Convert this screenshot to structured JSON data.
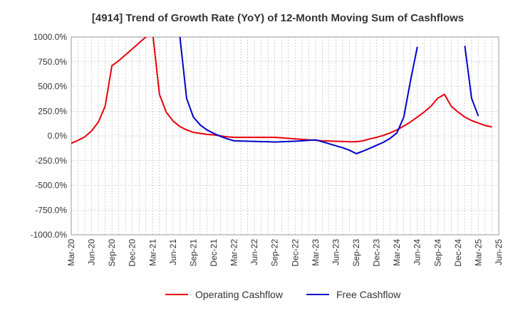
{
  "chart_data": {
    "type": "line",
    "title": "[4914]  Trend of Growth Rate (YoY) of 12-Month Moving Sum of Cashflows",
    "xlabel": "",
    "ylabel": "",
    "ylim": [
      -1000,
      1000
    ],
    "y_ticks": [
      1000,
      750,
      500,
      250,
      0,
      -250,
      -500,
      -750,
      -1000
    ],
    "y_tick_labels": [
      "1000.0%",
      "750.0%",
      "500.0%",
      "250.0%",
      "0.0%",
      "-250.0%",
      "-500.0%",
      "-750.0%",
      "-1000.0%"
    ],
    "x_tick_labels": [
      "Mar-20",
      "Jun-20",
      "Sep-20",
      "Dec-20",
      "Mar-21",
      "Jun-21",
      "Sep-21",
      "Dec-21",
      "Mar-22",
      "Jun-22",
      "Sep-22",
      "Dec-22",
      "Mar-23",
      "Jun-23",
      "Sep-23",
      "Dec-23",
      "Mar-24",
      "Jun-24",
      "Sep-24",
      "Dec-24",
      "Mar-25",
      "Jun-25"
    ],
    "grid": true,
    "legend_position": "bottom",
    "series": [
      {
        "name": "Operating Cashflow",
        "color": "#e8000b",
        "values": [
          [
            "Mar-20",
            -75
          ],
          [
            "Apr-20",
            -45
          ],
          [
            "May-20",
            -10
          ],
          [
            "Jun-20",
            50
          ],
          [
            "Jul-20",
            140
          ],
          [
            "Aug-20",
            300
          ],
          [
            "Sep-20",
            710
          ],
          [
            "Oct-20",
            760
          ],
          [
            "Nov-20",
            820
          ],
          [
            "Dec-20",
            880
          ],
          [
            "Jan-21",
            940
          ],
          [
            "Feb-21",
            1000
          ],
          [
            "Mar-21",
            1040
          ],
          [
            "Apr-21",
            420
          ],
          [
            "May-21",
            240
          ],
          [
            "Jun-21",
            150
          ],
          [
            "Jul-21",
            95
          ],
          [
            "Aug-21",
            60
          ],
          [
            "Sep-21",
            35
          ],
          [
            "Oct-21",
            25
          ],
          [
            "Nov-21",
            15
          ],
          [
            "Dec-21",
            10
          ],
          [
            "Jan-22",
            0
          ],
          [
            "Feb-22",
            -10
          ],
          [
            "Mar-22",
            -15
          ],
          [
            "Apr-22",
            -15
          ],
          [
            "May-22",
            -15
          ],
          [
            "Jun-22",
            -15
          ],
          [
            "Jul-22",
            -15
          ],
          [
            "Aug-22",
            -15
          ],
          [
            "Sep-22",
            -15
          ],
          [
            "Oct-22",
            -20
          ],
          [
            "Nov-22",
            -25
          ],
          [
            "Dec-22",
            -30
          ],
          [
            "Jan-23",
            -35
          ],
          [
            "Feb-23",
            -40
          ],
          [
            "Mar-23",
            -45
          ],
          [
            "Apr-23",
            -50
          ],
          [
            "May-23",
            -52
          ],
          [
            "Jun-23",
            -55
          ],
          [
            "Jul-23",
            -57
          ],
          [
            "Aug-23",
            -60
          ],
          [
            "Sep-23",
            -60
          ],
          [
            "Oct-23",
            -50
          ],
          [
            "Nov-23",
            -30
          ],
          [
            "Dec-23",
            -15
          ],
          [
            "Jan-24",
            5
          ],
          [
            "Feb-24",
            30
          ],
          [
            "Mar-24",
            60
          ],
          [
            "Apr-24",
            100
          ],
          [
            "May-24",
            140
          ],
          [
            "Jun-24",
            190
          ],
          [
            "Jul-24",
            240
          ],
          [
            "Aug-24",
            300
          ],
          [
            "Sep-24",
            380
          ],
          [
            "Oct-24",
            420
          ],
          [
            "Nov-24",
            300
          ],
          [
            "Dec-24",
            240
          ],
          [
            "Jan-25",
            190
          ],
          [
            "Feb-25",
            155
          ],
          [
            "Mar-25",
            130
          ],
          [
            "Apr-25",
            105
          ],
          [
            "May-25",
            90
          ]
        ]
      },
      {
        "name": "Free Cashflow",
        "color": "#0000cc",
        "values": [
          [
            "Jul-21",
            1010
          ],
          [
            "Aug-21",
            380
          ],
          [
            "Sep-21",
            190
          ],
          [
            "Oct-21",
            110
          ],
          [
            "Nov-21",
            60
          ],
          [
            "Dec-21",
            25
          ],
          [
            "Jan-22",
            -5
          ],
          [
            "Feb-22",
            -30
          ],
          [
            "Mar-22",
            -50
          ],
          [
            "Apr-22",
            -52
          ],
          [
            "May-22",
            -54
          ],
          [
            "Jun-22",
            -56
          ],
          [
            "Jul-22",
            -58
          ],
          [
            "Aug-22",
            -60
          ],
          [
            "Sep-22",
            -62
          ],
          [
            "Oct-22",
            -60
          ],
          [
            "Nov-22",
            -57
          ],
          [
            "Dec-22",
            -54
          ],
          [
            "Jan-23",
            -50
          ],
          [
            "Feb-23",
            -45
          ],
          [
            "Mar-23",
            -40
          ],
          [
            "Apr-23",
            -60
          ],
          [
            "May-23",
            -80
          ],
          [
            "Jun-23",
            -100
          ],
          [
            "Jul-23",
            -120
          ],
          [
            "Aug-23",
            -145
          ],
          [
            "Sep-23",
            -180
          ],
          [
            "Oct-23",
            -155
          ],
          [
            "Nov-23",
            -125
          ],
          [
            "Dec-23",
            -95
          ],
          [
            "Jan-24",
            -65
          ],
          [
            "Feb-24",
            -25
          ],
          [
            "Mar-24",
            30
          ],
          [
            "Apr-24",
            190
          ],
          [
            "May-24",
            560
          ],
          [
            "Jun-24",
            900
          ],
          null,
          [
            "Jan-25",
            910
          ],
          [
            "Feb-25",
            380
          ],
          [
            "Mar-25",
            200
          ]
        ]
      }
    ]
  }
}
